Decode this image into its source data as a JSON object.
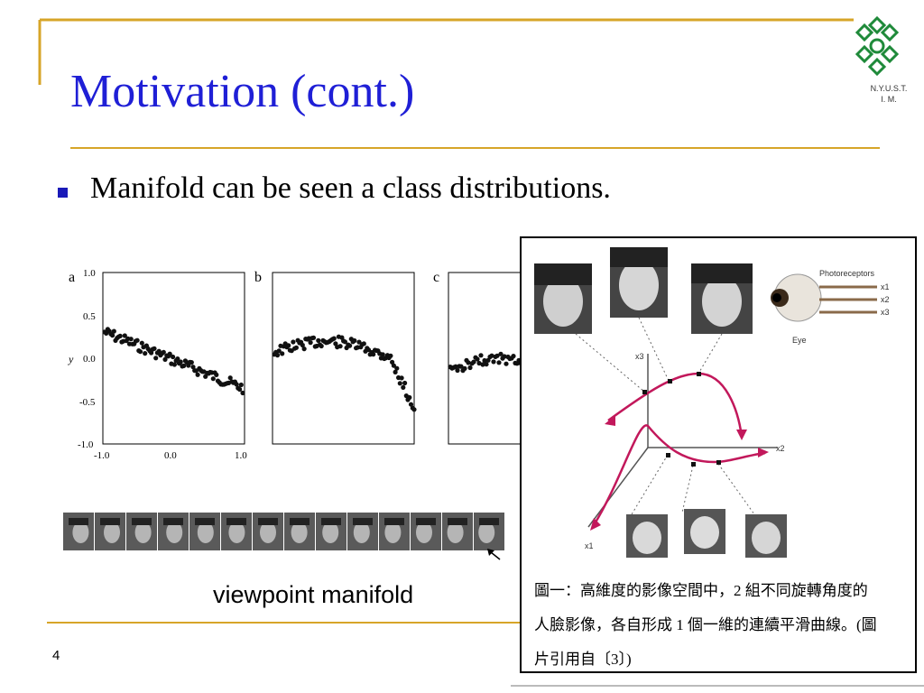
{
  "slide": {
    "title": "Motivation (cont.)",
    "bullet": "Manifold can be seen a class distributions.",
    "logo_text": [
      "N.Y.U.S.T.",
      "I. M."
    ],
    "page_number": "4",
    "caption_viewpoint": "viewpoint manifold"
  },
  "left_figure": {
    "panel_labels": [
      "a",
      "b",
      "c"
    ],
    "y_tick_labels": [
      "1.0",
      "0.5",
      "0.0",
      "-0.5",
      "-1.0"
    ],
    "y_axis_label": "y",
    "x_tick_labels": [
      "-1.0",
      "0.0",
      "1.0"
    ],
    "face_strip_count": 14
  },
  "right_figure": {
    "labels": {
      "photoreceptors": "Photoreceptors",
      "x1": "x1",
      "x2": "x2",
      "x3": "x3",
      "eye": "Eye",
      "axis_x1": "x1",
      "axis_x2": "x2",
      "axis_x3": "x3"
    },
    "caption_lines": [
      "圖一：高維度的影像空間中，2 組不同旋轉角度的",
      "人臉影像，各自形成 1 個一維的連續平滑曲線。(圖",
      "片引用自〔3〕)"
    ]
  },
  "colors": {
    "title": "#1f1fd6",
    "rule": "#d7a528",
    "bullet": "#1a1ab8",
    "logo": "#1f8a3a",
    "curve": "#c2185b"
  }
}
